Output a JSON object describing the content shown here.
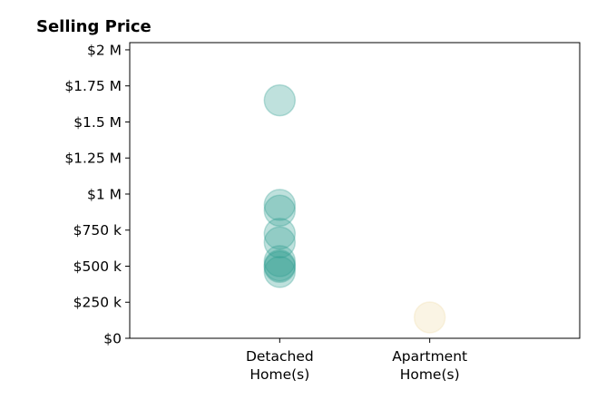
{
  "chart_data": {
    "type": "scatter",
    "title": "Selling Price",
    "xlabel": "",
    "ylabel": "",
    "categories": [
      [
        "Detached",
        "Home(s)"
      ],
      [
        "Apartment",
        "Home(s)"
      ]
    ],
    "xlim": [
      -1,
      2
    ],
    "ylim": [
      0,
      2050000
    ],
    "yticks": [
      0,
      250000,
      500000,
      750000,
      1000000,
      1250000,
      1500000,
      1750000,
      2000000
    ],
    "ytick_labels": [
      "$0",
      "$250 k",
      "$500 k",
      "$750 k",
      "$1 M",
      "$1.25 M",
      "$1.5 M",
      "$1.75 M",
      "$2 M"
    ],
    "grid": false,
    "legend": "none",
    "series": [
      {
        "category": 0,
        "color": "#2a9d8f",
        "values": [
          1650000,
          925000,
          885000,
          725000,
          665000,
          535000,
          505000,
          495000,
          460000
        ]
      },
      {
        "category": 1,
        "color": "#f0d9a6",
        "values": [
          145000
        ]
      }
    ]
  }
}
